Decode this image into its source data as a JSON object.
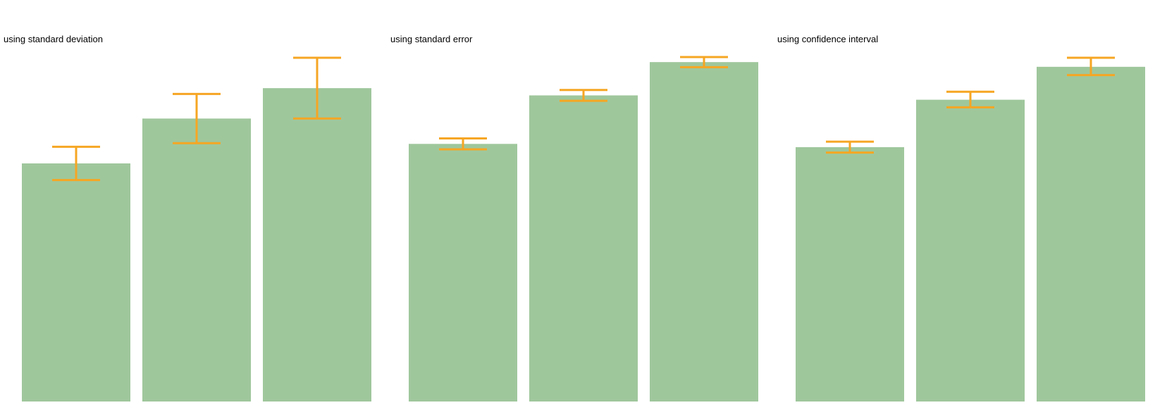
{
  "colors": {
    "bar": "#9fc79c",
    "error": "#f6a623",
    "background": "#ffffff"
  },
  "chart_data": [
    {
      "type": "bar",
      "title": "using standard deviation",
      "categories": [
        "",
        "",
        ""
      ],
      "values": [
        0.658,
        0.782,
        0.866
      ],
      "error_low": [
        0.612,
        0.714,
        0.782
      ],
      "error_high": [
        0.704,
        0.85,
        0.95
      ],
      "ylim": [
        0,
        0.95
      ],
      "grid": false,
      "xlabel": "",
      "ylabel": ""
    },
    {
      "type": "bar",
      "title": "using standard error",
      "categories": [
        "",
        "",
        ""
      ],
      "values": [
        0.712,
        0.846,
        0.938
      ],
      "error_low": [
        0.697,
        0.831,
        0.924
      ],
      "error_high": [
        0.727,
        0.861,
        0.952
      ],
      "ylim": [
        0,
        0.95
      ],
      "grid": false,
      "xlabel": "",
      "ylabel": ""
    },
    {
      "type": "bar",
      "title": "using confidence interval",
      "categories": [
        "",
        "",
        ""
      ],
      "values": [
        0.703,
        0.834,
        0.925
      ],
      "error_low": [
        0.688,
        0.813,
        0.902
      ],
      "error_high": [
        0.718,
        0.856,
        0.95
      ],
      "ylim": [
        0,
        0.95
      ],
      "grid": false,
      "xlabel": "",
      "ylabel": ""
    }
  ]
}
